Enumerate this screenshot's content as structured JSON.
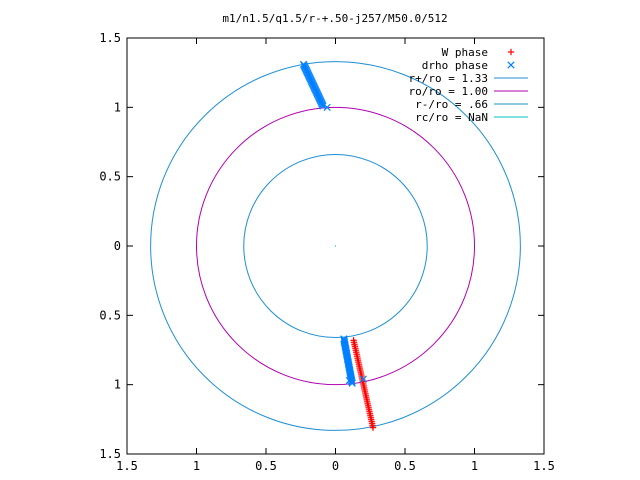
{
  "chart_data": {
    "type": "scatter",
    "title": "m1/n1.5/q1.5/r-+.50-j257/M50.0/512",
    "xlabel": "",
    "ylabel": "",
    "xlim": [
      -1.5,
      1.5
    ],
    "ylim": [
      -1.5,
      1.5
    ],
    "x_ticks": [
      {
        "value": -1.5,
        "label": "1.5"
      },
      {
        "value": -1,
        "label": "1"
      },
      {
        "value": -0.5,
        "label": "0.5"
      },
      {
        "value": 0,
        "label": "0"
      },
      {
        "value": 0.5,
        "label": "0.5"
      },
      {
        "value": 1,
        "label": "1"
      },
      {
        "value": 1.5,
        "label": "1.5"
      }
    ],
    "y_ticks": [
      {
        "value": 1.5,
        "label": "1.5"
      },
      {
        "value": 1,
        "label": "1"
      },
      {
        "value": 0.5,
        "label": "0.5"
      },
      {
        "value": 0,
        "label": "0"
      },
      {
        "value": -0.5,
        "label": "0.5"
      },
      {
        "value": -1,
        "label": "1"
      },
      {
        "value": -1.5,
        "label": "1.5"
      }
    ],
    "grid": false,
    "legend_position": "top-right",
    "series": [
      {
        "name": "W phase",
        "kind": "points",
        "marker": "+",
        "color": "#ff0000",
        "segments": [
          {
            "from": [
              0.13,
              -0.68
            ],
            "to": [
              0.27,
              -1.31
            ],
            "count": 45
          }
        ]
      },
      {
        "name": "drho phase",
        "kind": "points",
        "marker": "x",
        "color": "#0080ff",
        "segments": [
          {
            "from": [
              -0.23,
              1.31
            ],
            "to": [
              -0.09,
              1.01
            ],
            "count": 35
          },
          {
            "from": [
              0.06,
              -0.67
            ],
            "to": [
              0.12,
              -0.99
            ],
            "count": 35
          }
        ],
        "extra_points": [
          [
            -0.06,
            1.0
          ],
          [
            0.1,
            -0.97
          ],
          [
            0.2,
            -0.96
          ]
        ]
      },
      {
        "name": "r+/ro = 1.33",
        "kind": "circle",
        "radius": 1.33,
        "color": "#1f8fd0"
      },
      {
        "name": "ro/ro = 1.00",
        "kind": "circle",
        "radius": 1.0,
        "color": "#b000b0"
      },
      {
        "name": "r-/ro = .66",
        "kind": "circle",
        "radius": 0.66,
        "color": "#1f8fd0"
      },
      {
        "name": "rc/ro = NaN",
        "kind": "circle",
        "radius": null,
        "color": "#00c0c0"
      }
    ]
  }
}
